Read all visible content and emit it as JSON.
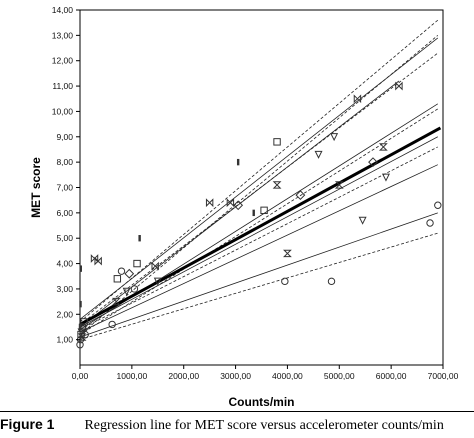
{
  "caption": {
    "label": "Figure 1",
    "text": "Regression line for MET score versus accelerometer counts/min"
  },
  "chart_data": {
    "type": "scatter",
    "title": "",
    "xlabel": "Counts/min",
    "ylabel": "MET score",
    "xlim": [
      0,
      7000
    ],
    "ylim": [
      0,
      14
    ],
    "x_ticks": [
      "0,00",
      "1000,00",
      "2000,00",
      "3000,00",
      "4000,00",
      "5000,00",
      "6000,00",
      "7000,00"
    ],
    "y_ticks": [
      "1,00",
      "2,00",
      "3,00",
      "4,00",
      "5,00",
      "6,00",
      "7,00",
      "8,00",
      "9,00",
      "10,00",
      "11,00",
      "12,00",
      "13,00",
      "14,00"
    ],
    "grid": false,
    "regression_line": {
      "x": [
        0,
        6950
      ],
      "y": [
        1.6,
        9.35
      ]
    },
    "individual_lines": [
      {
        "x": [
          0,
          6150
        ],
        "y": [
          1.5,
          11.2
        ],
        "style": "solid"
      },
      {
        "x": [
          0,
          6900
        ],
        "y": [
          1.2,
          13.0
        ],
        "style": "dashed"
      },
      {
        "x": [
          0,
          6900
        ],
        "y": [
          1.7,
          13.6
        ],
        "style": "dashed"
      },
      {
        "x": [
          0,
          6900
        ],
        "y": [
          1.8,
          12.9
        ],
        "style": "solid"
      },
      {
        "x": [
          0,
          6900
        ],
        "y": [
          1.6,
          12.3
        ],
        "style": "dashed"
      },
      {
        "x": [
          0,
          6900
        ],
        "y": [
          1.4,
          10.3
        ],
        "style": "solid"
      },
      {
        "x": [
          0,
          6900
        ],
        "y": [
          1.2,
          10.1
        ],
        "style": "dashed"
      },
      {
        "x": [
          0,
          6900
        ],
        "y": [
          1.5,
          9.0
        ],
        "style": "solid"
      },
      {
        "x": [
          0,
          6900
        ],
        "y": [
          1.4,
          8.6
        ],
        "style": "dashed"
      },
      {
        "x": [
          0,
          6900
        ],
        "y": [
          1.3,
          7.9
        ],
        "style": "solid"
      },
      {
        "x": [
          0,
          6900
        ],
        "y": [
          1.1,
          6.0
        ],
        "style": "solid"
      },
      {
        "x": [
          0,
          6900
        ],
        "y": [
          1.0,
          5.2
        ],
        "style": "dashed"
      }
    ],
    "points": [
      {
        "x": 0,
        "y": 0.8,
        "m": "circle"
      },
      {
        "x": 10,
        "y": 1.0,
        "m": "circle"
      },
      {
        "x": 20,
        "y": 1.2,
        "m": "square"
      },
      {
        "x": 30,
        "y": 1.3,
        "m": "triangle-down"
      },
      {
        "x": 40,
        "y": 1.1,
        "m": "hourglass"
      },
      {
        "x": 50,
        "y": 1.5,
        "m": "circle"
      },
      {
        "x": 60,
        "y": 1.4,
        "m": "diamond"
      },
      {
        "x": 80,
        "y": 1.7,
        "m": "square"
      },
      {
        "x": 100,
        "y": 1.2,
        "m": "circle"
      },
      {
        "x": 0,
        "y": 1.5,
        "m": "bar"
      },
      {
        "x": 10,
        "y": 2.4,
        "m": "bar"
      },
      {
        "x": 15,
        "y": 3.8,
        "m": "bar"
      },
      {
        "x": 280,
        "y": 4.2,
        "m": "bowtie"
      },
      {
        "x": 350,
        "y": 4.1,
        "m": "bowtie"
      },
      {
        "x": 620,
        "y": 1.6,
        "m": "circle"
      },
      {
        "x": 700,
        "y": 2.5,
        "m": "hourglass"
      },
      {
        "x": 720,
        "y": 3.4,
        "m": "square"
      },
      {
        "x": 800,
        "y": 3.7,
        "m": "circle"
      },
      {
        "x": 900,
        "y": 2.9,
        "m": "triangle-down"
      },
      {
        "x": 950,
        "y": 3.6,
        "m": "diamond"
      },
      {
        "x": 1050,
        "y": 3.0,
        "m": "circle"
      },
      {
        "x": 1100,
        "y": 4.0,
        "m": "square"
      },
      {
        "x": 1150,
        "y": 5.0,
        "m": "bar"
      },
      {
        "x": 1450,
        "y": 3.9,
        "m": "bowtie"
      },
      {
        "x": 1500,
        "y": 3.3,
        "m": "triangle-down"
      },
      {
        "x": 2500,
        "y": 6.4,
        "m": "bowtie"
      },
      {
        "x": 2900,
        "y": 6.4,
        "m": "bowtie"
      },
      {
        "x": 3050,
        "y": 6.3,
        "m": "diamond"
      },
      {
        "x": 3050,
        "y": 8.0,
        "m": "bar"
      },
      {
        "x": 3350,
        "y": 6.0,
        "m": "bar"
      },
      {
        "x": 3550,
        "y": 6.1,
        "m": "square"
      },
      {
        "x": 3800,
        "y": 7.1,
        "m": "hourglass"
      },
      {
        "x": 3800,
        "y": 8.8,
        "m": "square"
      },
      {
        "x": 3950,
        "y": 3.3,
        "m": "circle"
      },
      {
        "x": 4000,
        "y": 4.4,
        "m": "hourglass"
      },
      {
        "x": 4250,
        "y": 6.7,
        "m": "diamond"
      },
      {
        "x": 4600,
        "y": 8.3,
        "m": "triangle-down"
      },
      {
        "x": 4850,
        "y": 3.3,
        "m": "circle"
      },
      {
        "x": 4900,
        "y": 9.0,
        "m": "triangle-down"
      },
      {
        "x": 5000,
        "y": 7.1,
        "m": "hourglass"
      },
      {
        "x": 5350,
        "y": 10.5,
        "m": "bowtie"
      },
      {
        "x": 5450,
        "y": 5.7,
        "m": "triangle-down"
      },
      {
        "x": 5650,
        "y": 8.0,
        "m": "diamond"
      },
      {
        "x": 5850,
        "y": 8.6,
        "m": "hourglass"
      },
      {
        "x": 5900,
        "y": 7.4,
        "m": "triangle-down"
      },
      {
        "x": 6150,
        "y": 11.0,
        "m": "bowtie"
      },
      {
        "x": 6750,
        "y": 5.6,
        "m": "circle"
      },
      {
        "x": 6900,
        "y": 6.3,
        "m": "circle"
      }
    ]
  }
}
